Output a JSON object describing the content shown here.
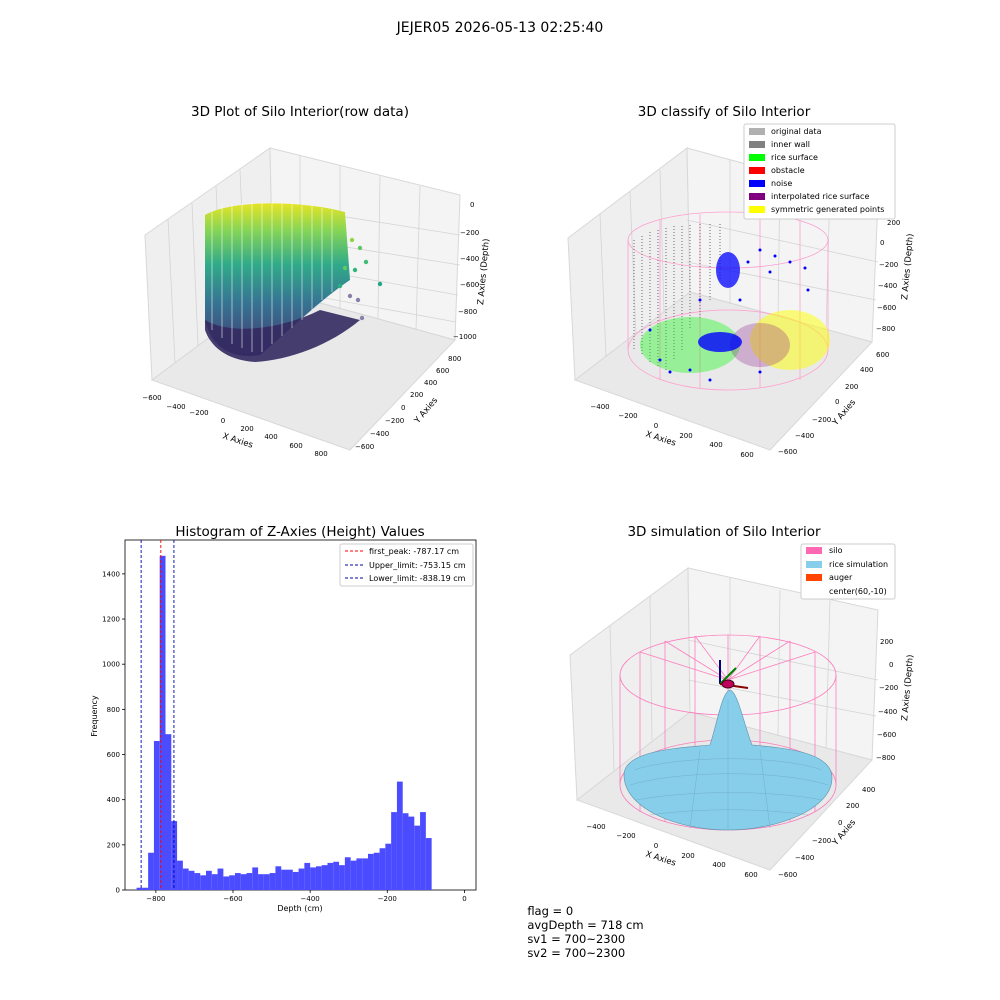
{
  "figure_title": "JEJER05 2026-05-13 02:25:40",
  "footer": {
    "flag": "flag = 0",
    "avg_depth": "avgDepth = 718 cm",
    "sv1": "sv1 = 700~2300",
    "sv2": "sv2 = 700~2300"
  },
  "colors": {
    "silo": "#ff69b4",
    "rice_simulation": "#87ceeb",
    "auger": "#ff4500",
    "histogram": "#4b4bff",
    "inner_wall": "#808080",
    "rice_surface": "#00ff00",
    "obstacle": "#ff0000",
    "noise": "#0000ff",
    "interpolated": "#800080",
    "symmetric": "#ffff00",
    "original": "#b0b0b0"
  },
  "chart_data": [
    {
      "type": "scatter",
      "title": "3D Plot of Silo Interior(row data)",
      "xlabel": "X Axies",
      "ylabel": "Y Axies",
      "zlabel": "Z Axies (Depth)",
      "x_ticks": [
        "−600",
        "−400",
        "−200",
        "0",
        "200",
        "400",
        "600",
        "800"
      ],
      "y_ticks": [
        "−600",
        "−400",
        "−200",
        "0",
        "200",
        "400",
        "600",
        "800"
      ],
      "z_ticks": [
        "0",
        "−200",
        "−400",
        "−600",
        "−800",
        "−1000"
      ],
      "colormap": "viridis"
    },
    {
      "type": "scatter",
      "title": "3D classify of Silo Interior",
      "xlabel": "X Axies",
      "ylabel": "Y Axies",
      "zlabel": "Z Axies (Depth)",
      "x_ticks": [
        "−400",
        "−200",
        "0",
        "200",
        "400",
        "600"
      ],
      "y_ticks": [
        "−600",
        "−400",
        "−200",
        "0",
        "200",
        "400",
        "600"
      ],
      "z_ticks": [
        "200",
        "0",
        "−200",
        "−400",
        "−600",
        "−800"
      ],
      "legend_position": "top-right",
      "legend": [
        {
          "label": "original data",
          "color": "#b0b0b0"
        },
        {
          "label": "inner wall",
          "color": "#808080"
        },
        {
          "label": "rice surface",
          "color": "#00ff00"
        },
        {
          "label": "obstacle",
          "color": "#ff0000"
        },
        {
          "label": "noise",
          "color": "#0000ff"
        },
        {
          "label": "interpolated rice surface",
          "color": "#800080"
        },
        {
          "label": "symmetric generated points",
          "color": "#ffff00"
        }
      ]
    },
    {
      "type": "bar",
      "title": "Histogram of Z-Axies (Height) Values",
      "xlabel": "Depth (cm)",
      "ylabel": "Frequency",
      "xlim": [
        -880,
        30
      ],
      "ylim": [
        0,
        1550
      ],
      "x_ticks": [
        -800,
        -600,
        -400,
        -200,
        0
      ],
      "y_ticks": [
        0,
        200,
        400,
        600,
        800,
        1000,
        1200,
        1400
      ],
      "bin_width": 15,
      "bins": [
        {
          "x": -850,
          "value": 10
        },
        {
          "x": -835,
          "value": 10
        },
        {
          "x": -820,
          "value": 165
        },
        {
          "x": -805,
          "value": 660
        },
        {
          "x": -790,
          "value": 1480
        },
        {
          "x": -775,
          "value": 690
        },
        {
          "x": -760,
          "value": 305
        },
        {
          "x": -745,
          "value": 130
        },
        {
          "x": -730,
          "value": 95
        },
        {
          "x": -715,
          "value": 85
        },
        {
          "x": -700,
          "value": 75
        },
        {
          "x": -685,
          "value": 65
        },
        {
          "x": -670,
          "value": 85
        },
        {
          "x": -655,
          "value": 70
        },
        {
          "x": -640,
          "value": 95
        },
        {
          "x": -625,
          "value": 60
        },
        {
          "x": -610,
          "value": 65
        },
        {
          "x": -595,
          "value": 75
        },
        {
          "x": -580,
          "value": 70
        },
        {
          "x": -565,
          "value": 75
        },
        {
          "x": -550,
          "value": 100
        },
        {
          "x": -535,
          "value": 70
        },
        {
          "x": -520,
          "value": 70
        },
        {
          "x": -505,
          "value": 75
        },
        {
          "x": -490,
          "value": 105
        },
        {
          "x": -475,
          "value": 90
        },
        {
          "x": -460,
          "value": 90
        },
        {
          "x": -445,
          "value": 80
        },
        {
          "x": -430,
          "value": 95
        },
        {
          "x": -415,
          "value": 120
        },
        {
          "x": -400,
          "value": 100
        },
        {
          "x": -385,
          "value": 105
        },
        {
          "x": -370,
          "value": 110
        },
        {
          "x": -355,
          "value": 120
        },
        {
          "x": -340,
          "value": 125
        },
        {
          "x": -325,
          "value": 110
        },
        {
          "x": -310,
          "value": 145
        },
        {
          "x": -295,
          "value": 130
        },
        {
          "x": -280,
          "value": 140
        },
        {
          "x": -265,
          "value": 140
        },
        {
          "x": -250,
          "value": 160
        },
        {
          "x": -235,
          "value": 165
        },
        {
          "x": -220,
          "value": 185
        },
        {
          "x": -205,
          "value": 205
        },
        {
          "x": -190,
          "value": 345
        },
        {
          "x": -175,
          "value": 480
        },
        {
          "x": -160,
          "value": 340
        },
        {
          "x": -145,
          "value": 325
        },
        {
          "x": -130,
          "value": 285
        },
        {
          "x": -115,
          "value": 345
        },
        {
          "x": -100,
          "value": 230
        }
      ],
      "vlines": [
        {
          "label": "first_peak: -787.17 cm",
          "x": -787.17,
          "color": "#ff0000"
        },
        {
          "label": "Upper_limit: -753.15 cm",
          "x": -753.15,
          "color": "#0000aa"
        },
        {
          "label": "Lower_limit: -838.19 cm",
          "x": -838.19,
          "color": "#0000aa"
        }
      ],
      "legend_position": "top-right"
    },
    {
      "type": "surface",
      "title": "3D simulation of Silo Interior",
      "xlabel": "X Axies",
      "ylabel": "Y Axies",
      "zlabel": "Z Axies (Depth)",
      "x_ticks": [
        "−400",
        "−200",
        "0",
        "200",
        "400",
        "600"
      ],
      "y_ticks": [
        "−600",
        "−400",
        "−200",
        "0",
        "200",
        "400"
      ],
      "z_ticks": [
        "200",
        "0",
        "−200",
        "−400",
        "−600",
        "−800"
      ],
      "legend_position": "top-right",
      "legend": [
        {
          "label": "silo",
          "color": "#ff69b4"
        },
        {
          "label": "rice simulation",
          "color": "#87ceeb"
        },
        {
          "label": "auger",
          "color": "#ff4500"
        },
        {
          "label": "center(60,-10)",
          "color": ""
        }
      ]
    }
  ]
}
